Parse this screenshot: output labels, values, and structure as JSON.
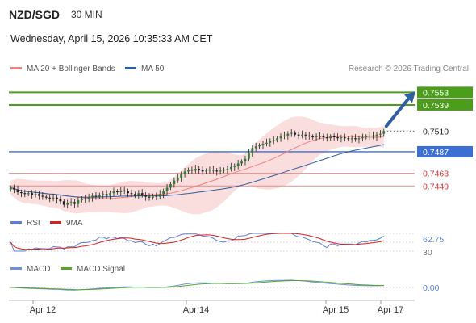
{
  "header": {
    "pair": "NZD/SGD",
    "timeframe": "30 MIN",
    "datetime": "Wednesday, April 15, 2026 10:35:33 AM CET",
    "credit": "Research © 2026 Trading Central"
  },
  "legend": {
    "ma20_bb": "MA 20 + Bollinger Bands",
    "ma50": "MA 50",
    "rsi": "RSI",
    "rsi_ma": "9MA",
    "macd": "MACD",
    "macd_signal": "MACD Signal"
  },
  "colors": {
    "resistance": "#4a9e1a",
    "pivot": "#3b6fd4",
    "support": "#d93636",
    "ma20": "#f08080",
    "ma50": "#2f5d9e",
    "bands": "#f8d2d2",
    "candle": "#2e7d32",
    "rsi": "#5b7fd6",
    "rsi_ma": "#d62020",
    "macd": "#6f8fd6",
    "macd_signal": "#55a630",
    "arrow": "#2f5f9e"
  },
  "chart_data": [
    {
      "type": "candlestick",
      "title": "NZD/SGD",
      "x_ticks": [
        "Apr 12",
        "Apr 14",
        "Apr 15",
        "Apr 17"
      ],
      "ylim": [
        0.7425,
        0.7565
      ],
      "levels": [
        {
          "label": "0.7553",
          "value": 0.7553,
          "kind": "resistance"
        },
        {
          "label": "0.7539",
          "value": 0.7539,
          "kind": "resistance"
        },
        {
          "label": "0.7510",
          "value": 0.751,
          "kind": "last"
        },
        {
          "label": "0.7487",
          "value": 0.7487,
          "kind": "pivot"
        },
        {
          "label": "0.7463",
          "value": 0.7463,
          "kind": "support"
        },
        {
          "label": "0.7449",
          "value": 0.7449,
          "kind": "support"
        }
      ],
      "close": [
        0.7447,
        0.7445,
        0.7442,
        0.7441,
        0.744,
        0.7441,
        0.7439,
        0.744,
        0.7438,
        0.7437,
        0.7436,
        0.7435,
        0.7436,
        0.7434,
        0.7432,
        0.7428,
        0.743,
        0.7431,
        0.7429,
        0.7433,
        0.7435,
        0.7434,
        0.7436,
        0.7438,
        0.7437,
        0.7439,
        0.744,
        0.7438,
        0.7441,
        0.7443,
        0.7442,
        0.7444,
        0.7443,
        0.7441,
        0.744,
        0.7438,
        0.7441,
        0.7439,
        0.7437,
        0.7436,
        0.7438,
        0.7437,
        0.744,
        0.7443,
        0.7447,
        0.7451,
        0.7455,
        0.7458,
        0.7462,
        0.7465,
        0.7467,
        0.7466,
        0.7468,
        0.7467,
        0.7465,
        0.7466,
        0.7467,
        0.7466,
        0.7465,
        0.7466,
        0.7467,
        0.7468,
        0.747,
        0.7471,
        0.7474,
        0.7476,
        0.7479,
        0.7486,
        0.7491,
        0.7493,
        0.7494,
        0.7496,
        0.7497,
        0.7499,
        0.75,
        0.7502,
        0.7504,
        0.7505,
        0.7507,
        0.7508,
        0.7506,
        0.7505,
        0.7506,
        0.7505,
        0.7504,
        0.7503,
        0.7504,
        0.7504,
        0.7503,
        0.7502,
        0.7504,
        0.7503,
        0.7502,
        0.7503,
        0.7502,
        0.7501,
        0.7502,
        0.7501,
        0.7502,
        0.7503,
        0.7504,
        0.7505,
        0.7504,
        0.7506,
        0.7507,
        0.751
      ]
    },
    {
      "type": "line",
      "title": "RSI",
      "series": [
        {
          "name": "RSI"
        },
        {
          "name": "9MA"
        }
      ],
      "last_value": 62.75,
      "tick_labels": [
        "62.75",
        "30"
      ]
    },
    {
      "type": "line",
      "title": "MACD",
      "series": [
        {
          "name": "MACD"
        },
        {
          "name": "MACD Signal"
        }
      ],
      "last_value": 0.0,
      "tick_labels": [
        "0.00"
      ]
    }
  ]
}
